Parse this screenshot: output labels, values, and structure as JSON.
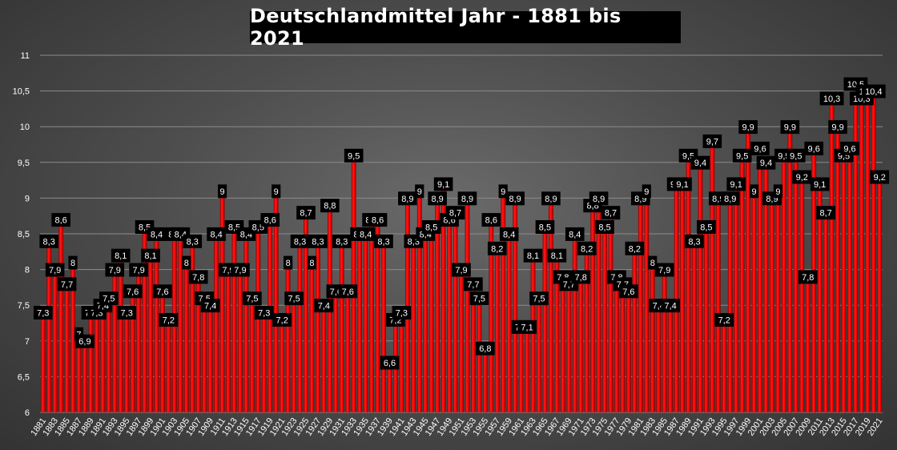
{
  "chart_data": {
    "type": "bar",
    "title": "Deutschlandmittel Jahr - 1881 bis 2021",
    "xlabel": "",
    "ylabel": "",
    "ylim": [
      6,
      11
    ],
    "yticks": [
      "6",
      "6,5",
      "7",
      "7,5",
      "8",
      "8,5",
      "9",
      "9,5",
      "10",
      "10,5",
      "11"
    ],
    "grid": true,
    "decimal_separator": ",",
    "bar_color": "#ff0000",
    "categories": [
      "1881",
      "1882",
      "1883",
      "1884",
      "1885",
      "1886",
      "1887",
      "1888",
      "1889",
      "1890",
      "1891",
      "1892",
      "1893",
      "1894",
      "1895",
      "1896",
      "1897",
      "1898",
      "1899",
      "1900",
      "1901",
      "1902",
      "1903",
      "1904",
      "1905",
      "1906",
      "1907",
      "1908",
      "1909",
      "1910",
      "1911",
      "1912",
      "1913",
      "1914",
      "1915",
      "1916",
      "1917",
      "1918",
      "1919",
      "1920",
      "1921",
      "1922",
      "1923",
      "1924",
      "1925",
      "1926",
      "1927",
      "1928",
      "1929",
      "1930",
      "1931",
      "1932",
      "1933",
      "1934",
      "1935",
      "1936",
      "1937",
      "1938",
      "1939",
      "1940",
      "1941",
      "1942",
      "1943",
      "1944",
      "1945",
      "1946",
      "1947",
      "1948",
      "1949",
      "1950",
      "1951",
      "1952",
      "1953",
      "1954",
      "1955",
      "1956",
      "1957",
      "1958",
      "1959",
      "1960",
      "1961",
      "1962",
      "1963",
      "1964",
      "1965",
      "1966",
      "1967",
      "1968",
      "1969",
      "1970",
      "1971",
      "1972",
      "1973",
      "1974",
      "1975",
      "1976",
      "1977",
      "1978",
      "1979",
      "1980",
      "1981",
      "1982",
      "1983",
      "1984",
      "1985",
      "1986",
      "1987",
      "1988",
      "1989",
      "1990",
      "1991",
      "1992",
      "1993",
      "1994",
      "1995",
      "1996",
      "1997",
      "1998",
      "1999",
      "2000",
      "2001",
      "2002",
      "2003",
      "2004",
      "2005",
      "2006",
      "2007",
      "2008",
      "2009",
      "2010",
      "2011",
      "2012",
      "2013",
      "2014",
      "2015",
      "2016",
      "2017",
      "2018",
      "2019",
      "2020",
      "2021"
    ],
    "values": [
      7.3,
      8.3,
      7.9,
      8.6,
      7.7,
      8.0,
      7.0,
      6.9,
      7.3,
      7.3,
      7.4,
      7.5,
      7.9,
      8.1,
      7.3,
      7.6,
      7.9,
      8.5,
      8.1,
      8.4,
      7.6,
      7.2,
      8.4,
      8.4,
      8.0,
      8.3,
      7.8,
      7.5,
      7.4,
      8.4,
      9.0,
      7.9,
      8.5,
      7.9,
      8.4,
      7.5,
      8.5,
      7.3,
      8.6,
      9.0,
      7.2,
      8.0,
      7.5,
      8.3,
      8.7,
      8.0,
      8.3,
      7.4,
      8.8,
      7.6,
      8.3,
      7.6,
      9.5,
      8.4,
      8.4,
      8.6,
      8.6,
      8.3,
      6.6,
      7.2,
      7.3,
      8.9,
      8.3,
      9.0,
      8.4,
      8.5,
      8.9,
      9.1,
      8.6,
      8.7,
      7.9,
      8.9,
      7.7,
      7.5,
      6.8,
      8.6,
      8.2,
      9.0,
      8.4,
      8.9,
      7.1,
      7.1,
      8.1,
      7.5,
      8.5,
      8.9,
      8.1,
      7.8,
      7.7,
      8.4,
      7.8,
      8.2,
      8.8,
      8.9,
      8.5,
      8.7,
      7.8,
      7.7,
      7.6,
      8.2,
      8.9,
      9.0,
      8.0,
      7.4,
      7.9,
      7.4,
      9.1,
      9.1,
      9.5,
      8.3,
      9.4,
      8.5,
      9.7,
      8.9,
      7.2,
      8.9,
      9.1,
      9.5,
      9.9,
      9.0,
      9.6,
      9.4,
      8.9,
      9.0,
      9.5,
      9.9,
      9.5,
      9.2,
      7.8,
      9.6,
      9.1,
      8.7,
      10.3,
      9.9,
      9.5,
      9.6,
      10.5,
      10.3,
      10.4,
      10.4,
      9.2
    ],
    "data_labels": [
      "7,3",
      "8,3",
      "7,9",
      "8,6",
      "7,7",
      "8",
      "7",
      "6,9",
      "7,3",
      "7,3",
      "7,4",
      "7,5",
      "7,9",
      "8,1",
      "7,3",
      "7,6",
      "7,9",
      "8,5",
      "8,1",
      "8,4",
      "7,6",
      "7,2",
      "8,4",
      "8,4",
      "8",
      "8,3",
      "7,8",
      "7,5",
      "7,4",
      "8,4",
      "9",
      "7,9",
      "8,5",
      "7,9",
      "8,4",
      "7,5",
      "8,5",
      "7,3",
      "8,6",
      "9",
      "7,2",
      "8",
      "7,5",
      "8,3",
      "8,7",
      "8",
      "8,3",
      "7,4",
      "8,8",
      "7,6",
      "8,3",
      "7,6",
      "9,5",
      "8,4",
      "8,4",
      "8,6",
      "8,6",
      "8,3",
      "6,6",
      "7,2",
      "7,3",
      "8,9",
      "8,3",
      "9",
      "8,4",
      "8,5",
      "8,9",
      "9,1",
      "8,6",
      "8,7",
      "7,9",
      "8,9",
      "7,7",
      "7,5",
      "6,8",
      "8,6",
      "8,2",
      "9",
      "8,4",
      "8,9",
      "7,1",
      "7,1",
      "8,1",
      "7,5",
      "8,5",
      "8,9",
      "8,1",
      "7,8",
      "7,7",
      "8,4",
      "7,8",
      "8,2",
      "8,8",
      "8,9",
      "8,5",
      "8,7",
      "7,8",
      "7,7",
      "7,6",
      "8,2",
      "8,9",
      "9",
      "8",
      "7,4",
      "7,9",
      "7,4",
      "9,1",
      "9,1",
      "9,5",
      "8,3",
      "9,4",
      "8,5",
      "9,7",
      "8,9",
      "7,2",
      "8,9",
      "9,1",
      "9,5",
      "9,9",
      "9",
      "9,6",
      "9,4",
      "8,9",
      "9",
      "9,5",
      "9,9",
      "9,5",
      "9,2",
      "7,8",
      "9,6",
      "9,1",
      "8,7",
      "10,3",
      "9,9",
      "9,5",
      "9,6",
      "10,5",
      "10,3",
      "10,4",
      "10,4",
      "9,2"
    ]
  }
}
